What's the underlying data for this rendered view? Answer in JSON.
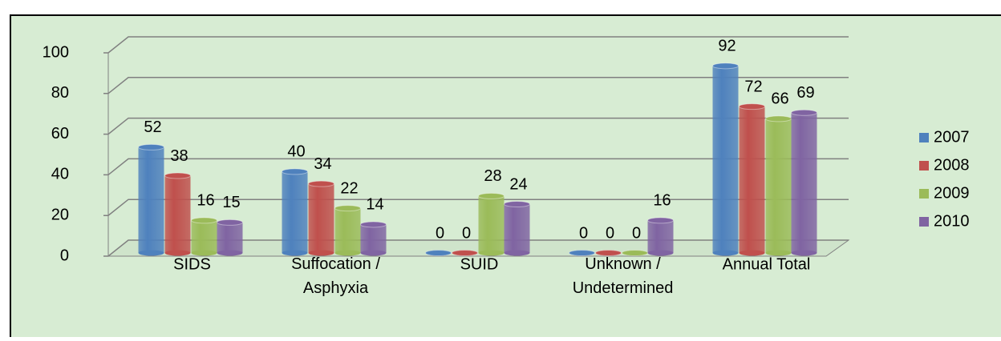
{
  "chart_data": {
    "type": "bar3d",
    "categories": [
      "SIDS",
      "Suffocation / Asphyxia",
      "SUID",
      "Unknown / Undetermined",
      "Annual Total"
    ],
    "series": [
      {
        "name": "2007",
        "color": "#4f81bd",
        "values": [
          52,
          40,
          0,
          0,
          92
        ]
      },
      {
        "name": "2008",
        "color": "#c0504d",
        "values": [
          38,
          34,
          0,
          0,
          72
        ]
      },
      {
        "name": "2009",
        "color": "#9bbb59",
        "values": [
          16,
          22,
          28,
          0,
          66
        ]
      },
      {
        "name": "2010",
        "color": "#8064a2",
        "values": [
          15,
          14,
          24,
          16,
          69
        ]
      }
    ],
    "ylim": [
      0,
      100
    ],
    "yticks": [
      0,
      20,
      40,
      60,
      80,
      100
    ],
    "grid": true,
    "legend": "right"
  }
}
